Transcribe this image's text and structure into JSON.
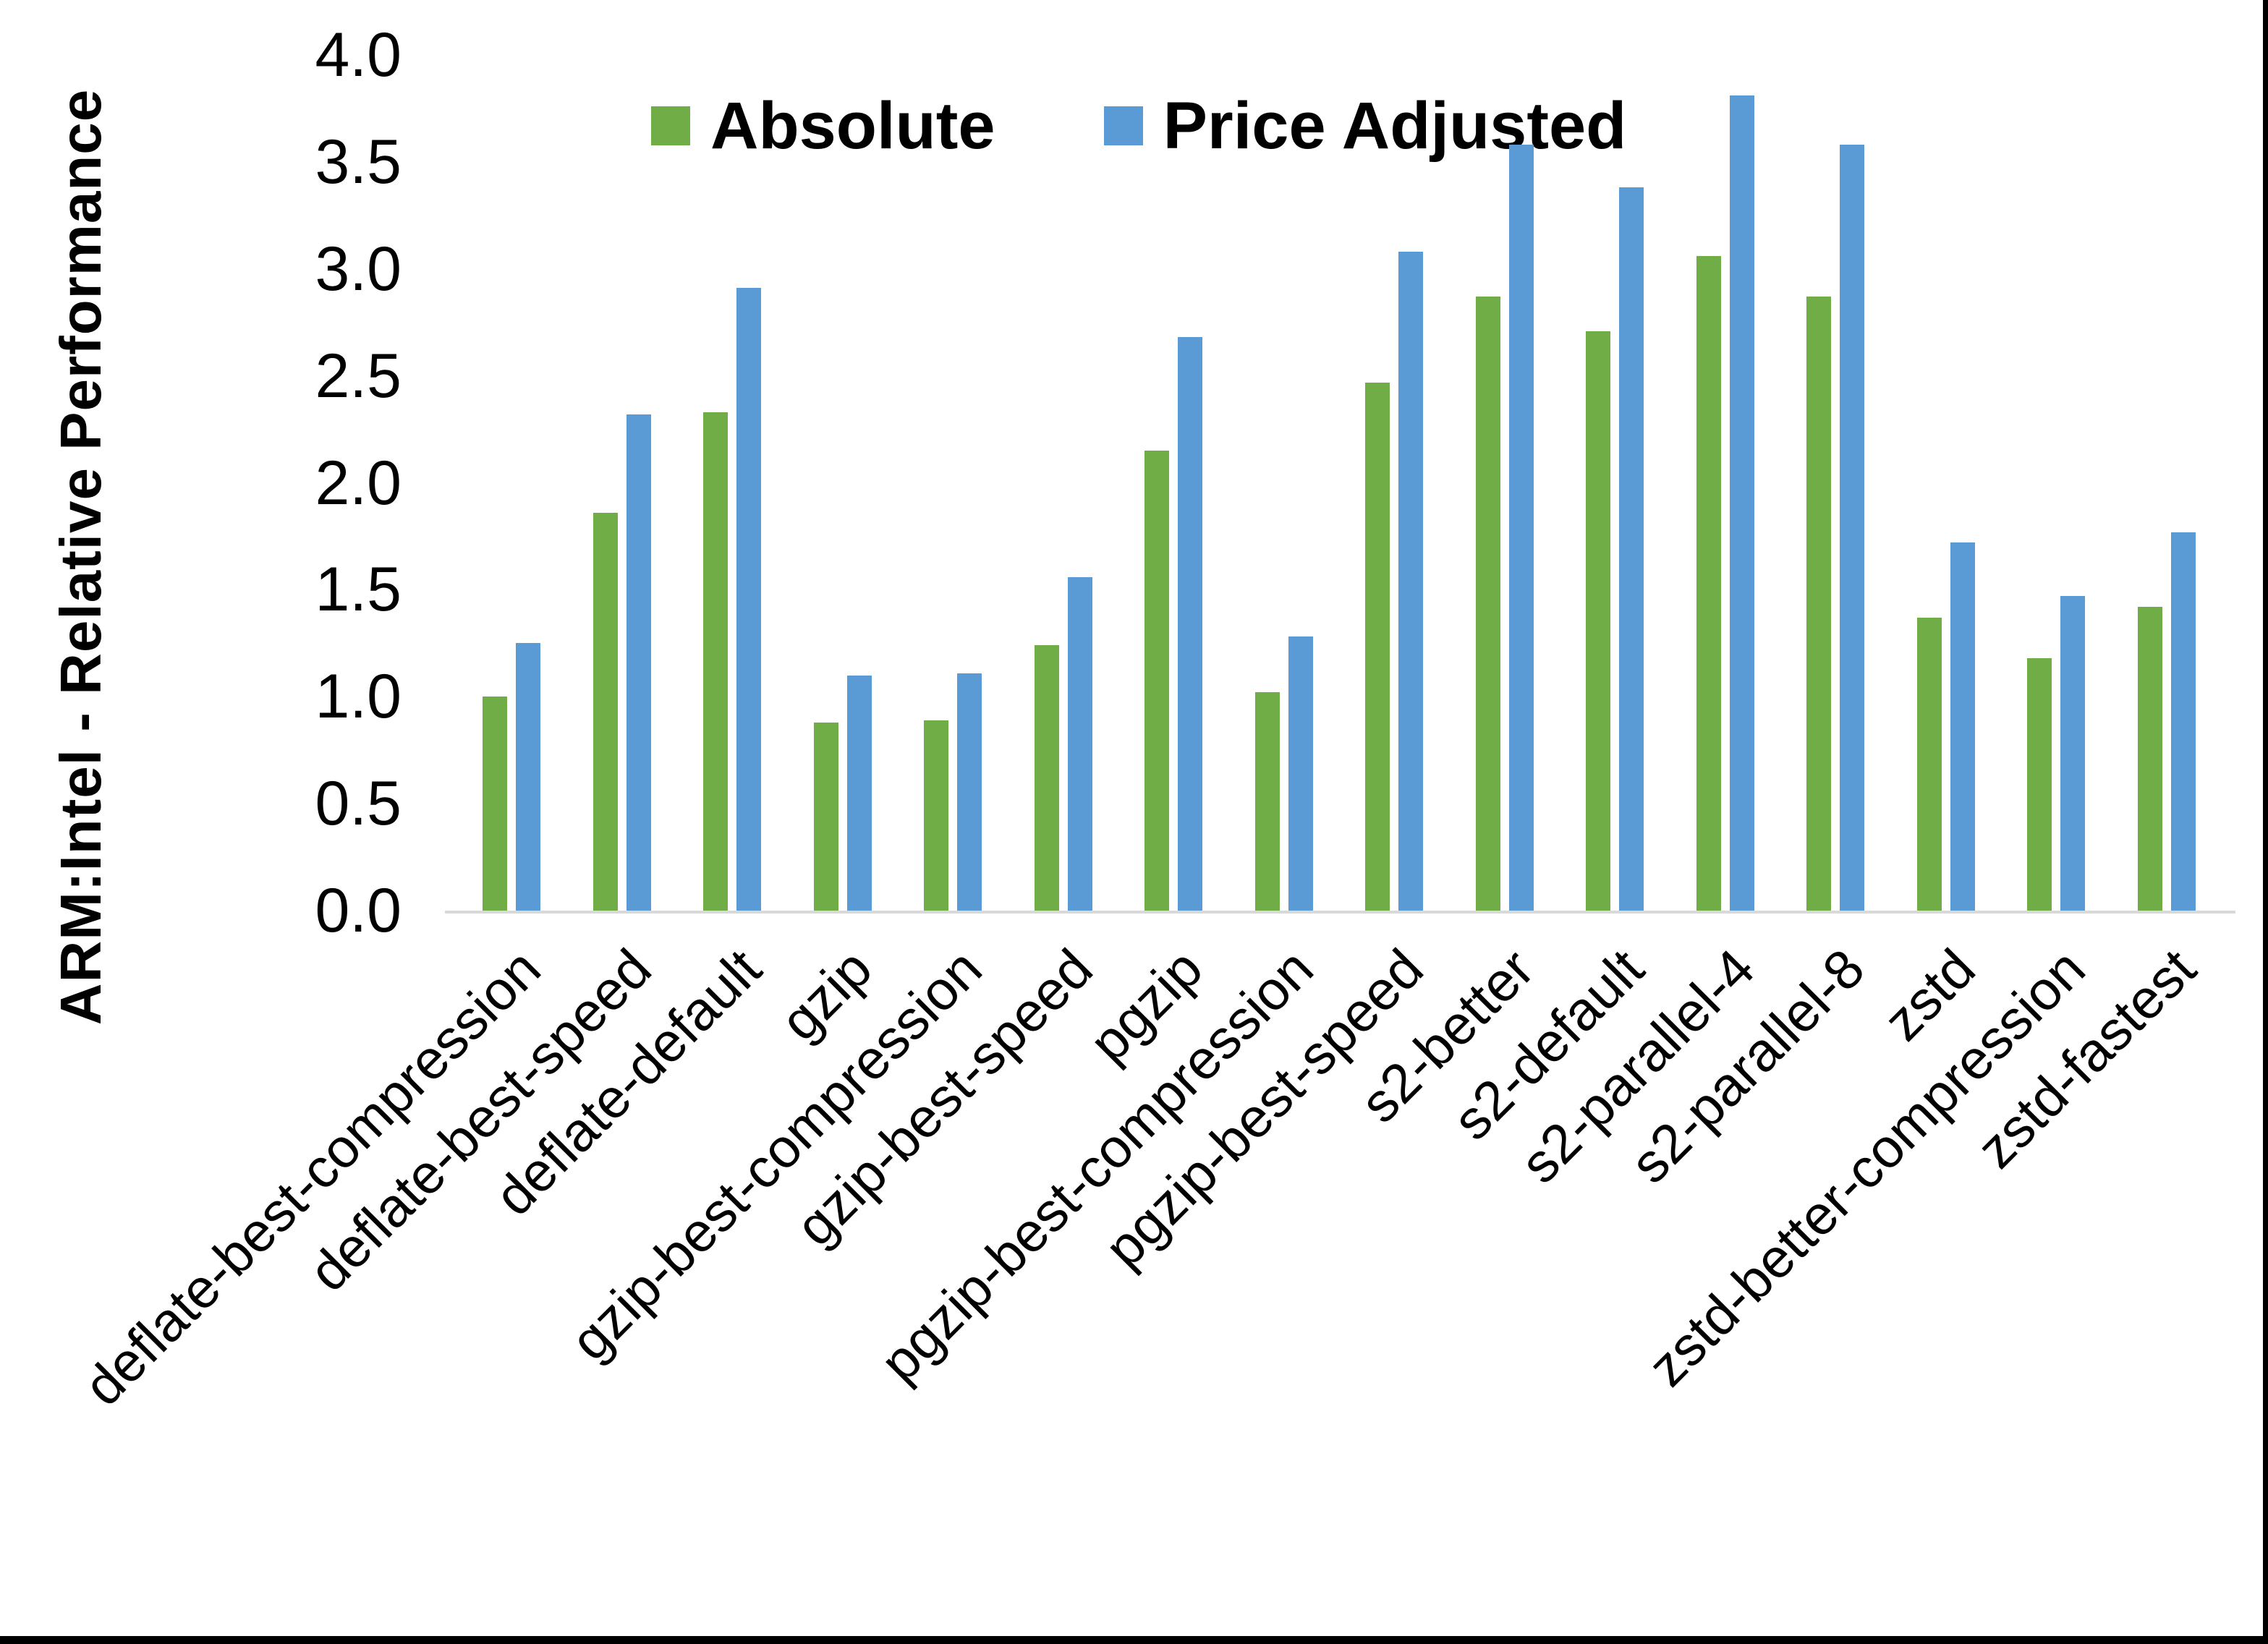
{
  "page": {
    "background": "#ffffff",
    "border_color": "#000000"
  },
  "chart_data": {
    "type": "bar",
    "title": "",
    "xlabel": "",
    "ylabel": "ARM:Intel - Relative Performance",
    "ylim": [
      0.0,
      4.0
    ],
    "ytick_step": 0.5,
    "yticks": [
      "0.0",
      "0.5",
      "1.0",
      "1.5",
      "2.0",
      "2.5",
      "3.0",
      "3.5",
      "4.0"
    ],
    "grid": false,
    "legend_position": "top-center",
    "axis_line_color": "#d9d9d9",
    "categories": [
      "deflate-best-compression",
      "deflate-best-speed",
      "deflate-default",
      "gzip",
      "gzip-best-compression",
      "gzip-best-speed",
      "pgzip",
      "pgzip-best-compression",
      "pgzip-best-speed",
      "s2-better",
      "s2-default",
      "s2-parallel-4",
      "s2-parallel-8",
      "zstd",
      "zstd-better-compression",
      "zstd-fastest"
    ],
    "series": [
      {
        "name": "Absolute",
        "color": "#70AD47",
        "values": [
          1.0,
          1.86,
          2.33,
          0.88,
          0.89,
          1.24,
          2.15,
          1.02,
          2.47,
          2.87,
          2.71,
          3.06,
          2.87,
          1.37,
          1.18,
          1.42
        ]
      },
      {
        "name": "Price Adjusted",
        "color": "#5B9BD5",
        "values": [
          1.25,
          2.32,
          2.91,
          1.1,
          1.11,
          1.56,
          2.68,
          1.28,
          3.08,
          3.58,
          3.38,
          3.81,
          3.58,
          1.72,
          1.47,
          1.77
        ]
      }
    ]
  }
}
